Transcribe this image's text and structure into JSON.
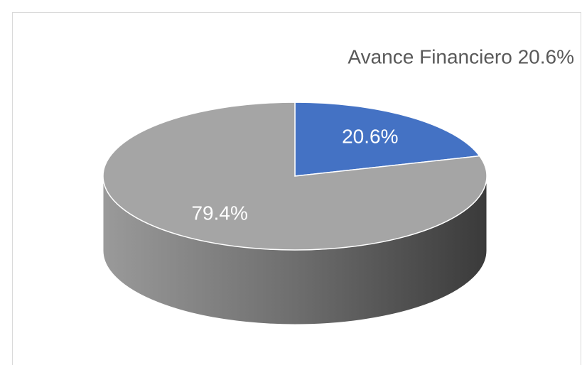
{
  "chart_data": {
    "type": "pie3d",
    "title": "Avance Financiero 20.6%",
    "series": [
      {
        "color": "#4472c4",
        "values": [
          20.6
        ],
        "value_labels": [
          "20.6%"
        ]
      },
      {
        "color": "#a5a5a5",
        "values": [
          79.4
        ],
        "value_labels": [
          "79.4%"
        ]
      }
    ]
  }
}
